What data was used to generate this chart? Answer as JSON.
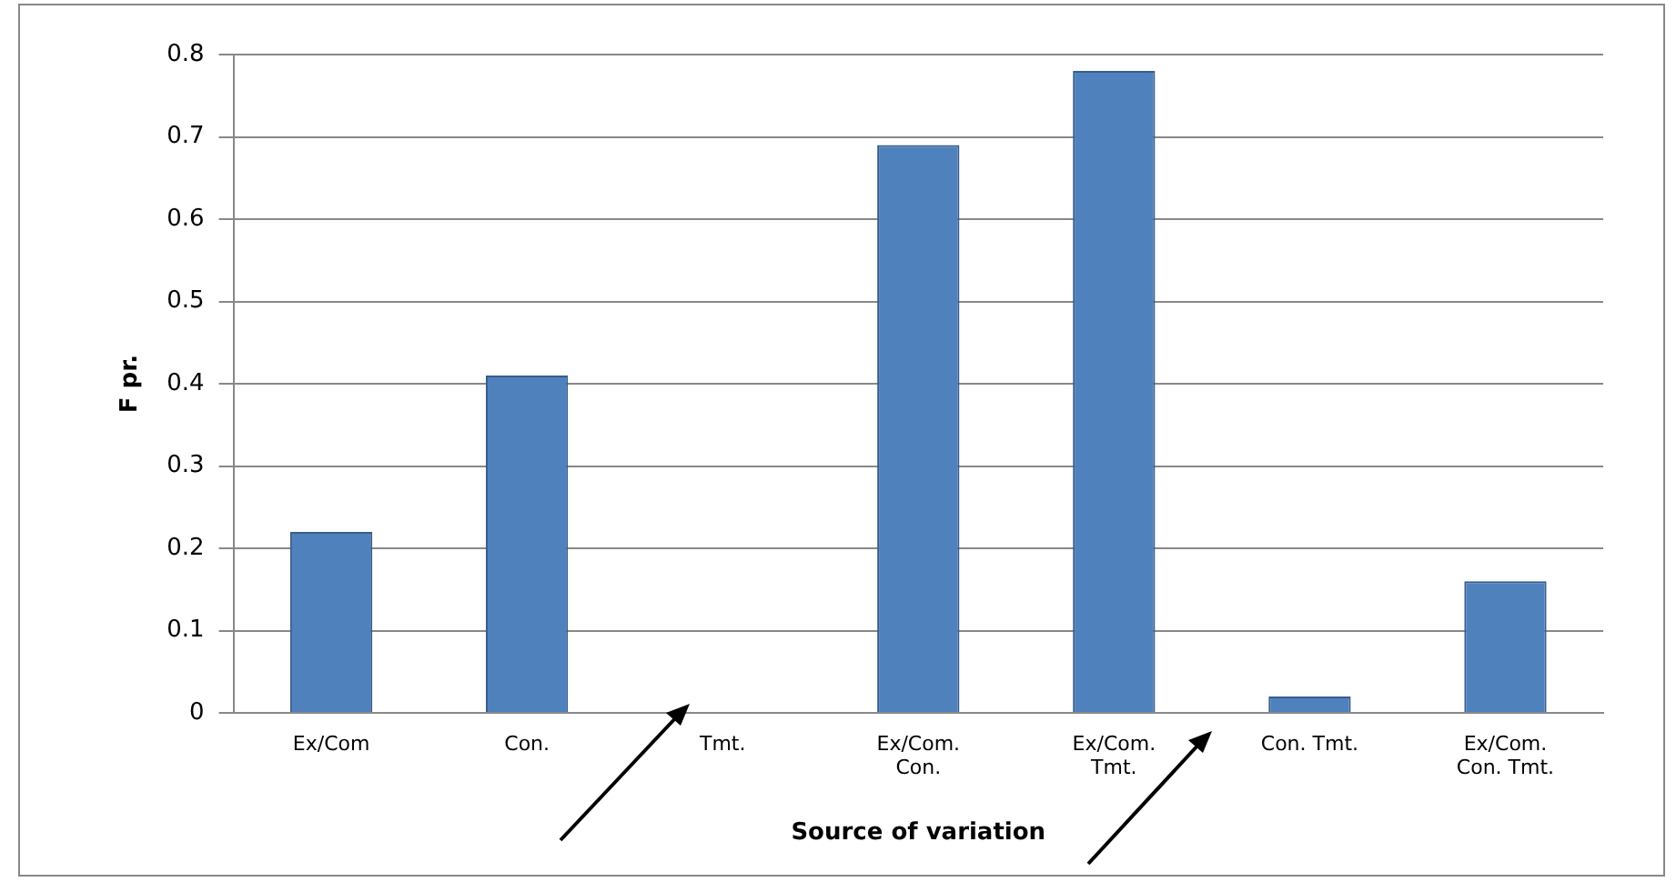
{
  "chart_data": {
    "type": "bar",
    "xlabel": "Source of variation",
    "ylabel": "F pr.",
    "categories": [
      "Ex/Com",
      "Con.",
      "Tmt.",
      "Ex/Com.\nCon.",
      "Ex/Com.\nTmt.",
      "Con. Tmt.",
      "Ex/Com.\nCon. Tmt."
    ],
    "values": [
      0.22,
      0.41,
      0.001,
      0.69,
      0.78,
      0.02,
      0.16
    ],
    "color": "#4f81bd",
    "ylim": [
      0,
      0.8
    ],
    "yticks": [
      0,
      0.1,
      0.2,
      0.3,
      0.4,
      0.5,
      0.6,
      0.7,
      0.8
    ],
    "grid": "y",
    "legend": false
  }
}
